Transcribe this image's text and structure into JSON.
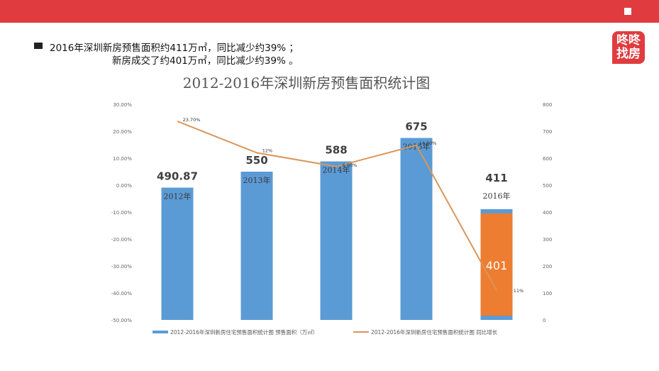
{
  "header": {
    "summary_line_1": "2016年深圳新房预售面积约411万㎡，同比减少约39% ；",
    "summary_line_2": "新房成交了约401万㎡，同比减少约39% 。"
  },
  "logo": {
    "line1": "咚咚",
    "line2": "找房"
  },
  "colors": {
    "brand_red": "#e03c3f",
    "bar_blue": "#5b9bd5",
    "bar_orange": "#ed7d31",
    "line_orange": "#d9955a"
  },
  "chart_data": {
    "type": "bar",
    "title": "2012-2016年深圳新房预售面积统计图",
    "categories": [
      "2012年",
      "2013年",
      "2014年",
      "2015年",
      "2016年"
    ],
    "series": [
      {
        "name": "2012-2016年深圳新房住宅预售面积统计图 预售面积（万㎡）",
        "type": "bar",
        "axis": "right",
        "values": [
          490.87,
          550,
          588,
          675,
          411
        ],
        "value_labels": [
          "490.87",
          "550",
          "588",
          "675",
          "411"
        ]
      },
      {
        "name": "2012-2016年深圳新房住宅预售面积统计图 同比增长",
        "type": "line",
        "axis": "left",
        "values": [
          23.7,
          12,
          6.9,
          14.8,
          -39
        ],
        "value_labels": [
          "23.70%",
          "12%",
          "6.90%",
          "14.80%",
          ""
        ]
      }
    ],
    "overlay": {
      "category": "2016年",
      "name": "新房成交",
      "value": 401,
      "label": "401",
      "extra_label": "11%"
    },
    "left_axis": {
      "ylim": [
        -50,
        30
      ],
      "ticks": [
        "30.00%",
        "20.00%",
        "10.00%",
        "0.00%",
        "-10.00%",
        "-20.00%",
        "-30.00%",
        "-40.00%",
        "-50.00%"
      ]
    },
    "right_axis": {
      "ylim": [
        0,
        800
      ],
      "ticks": [
        "800",
        "700",
        "600",
        "500",
        "400",
        "300",
        "200",
        "100",
        "0"
      ]
    },
    "grid": false,
    "legend_position": "bottom"
  }
}
